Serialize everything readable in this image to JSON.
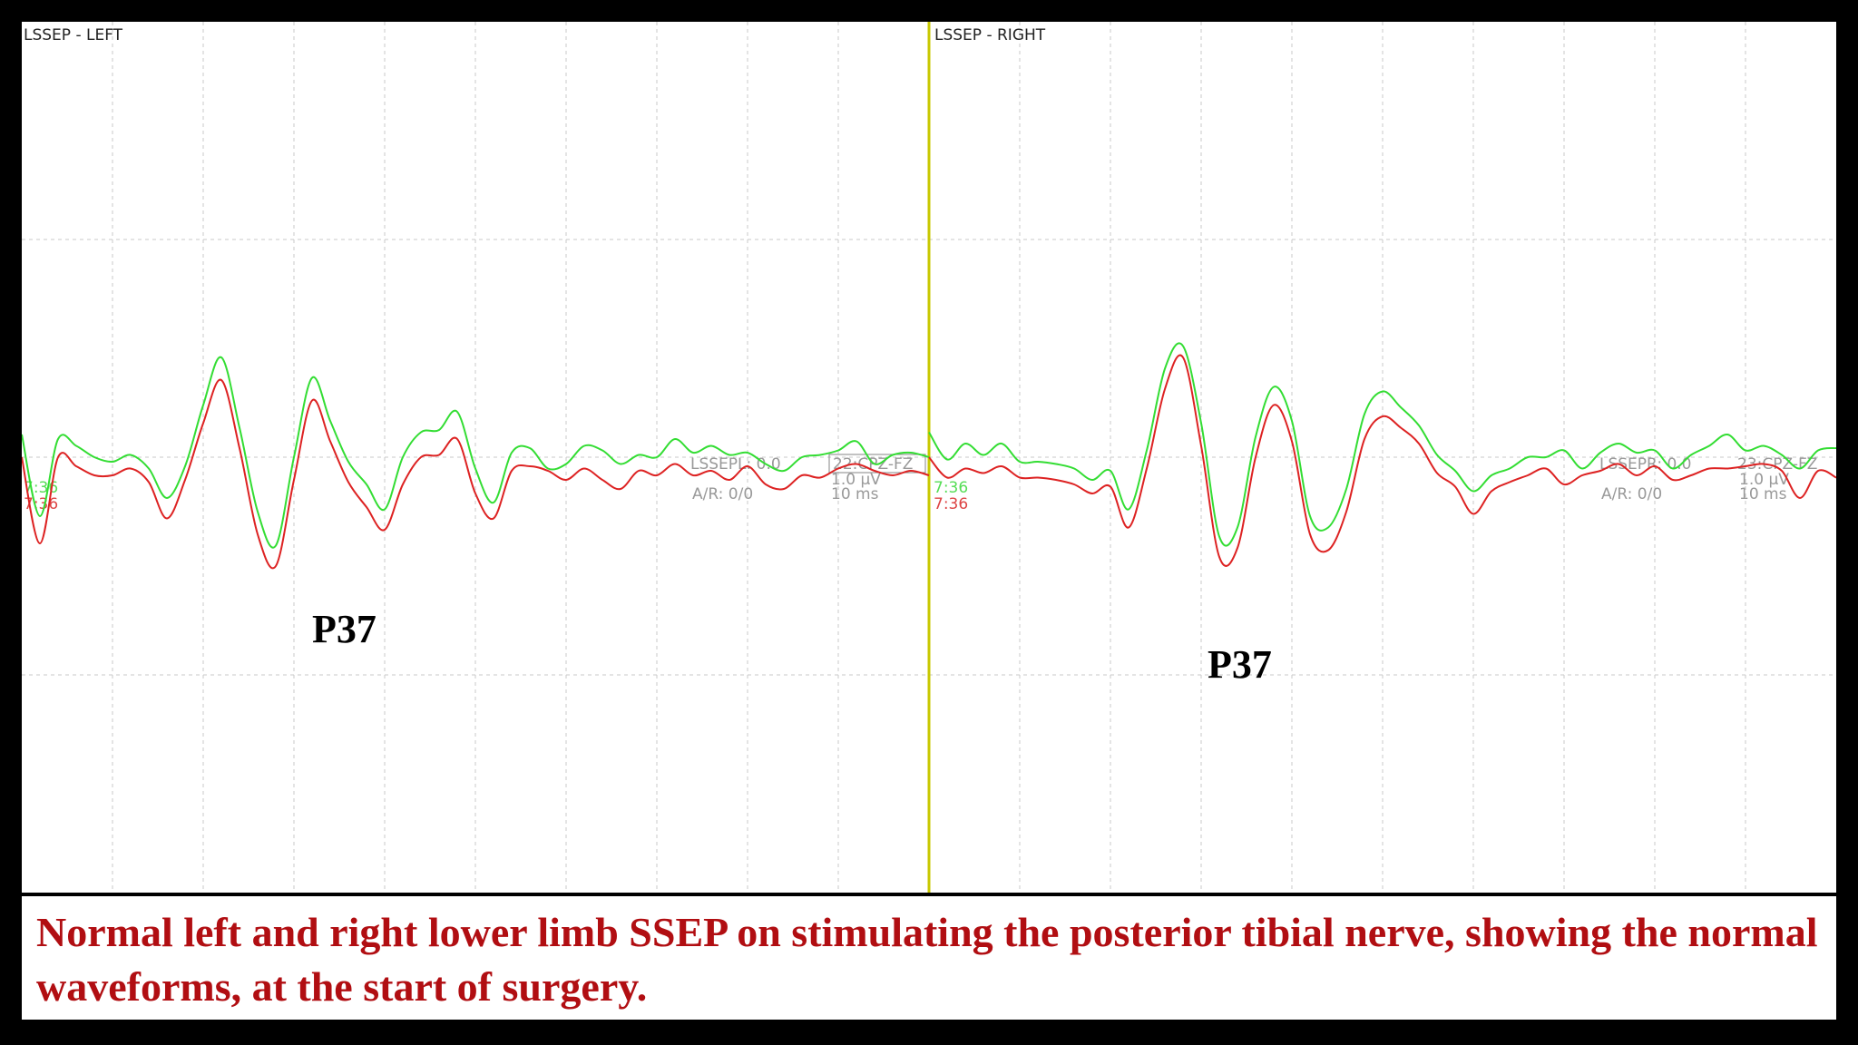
{
  "caption": "Normal left and right lower limb SSEP on stimulating the posterior tibial nerve, showing the normal waveforms, at the start of surgery.",
  "colors": {
    "trace_green": "#33dd33",
    "trace_red": "#dd2222",
    "divider": "#c8c800",
    "grid": "#c8c8c8",
    "caption": "#b10e12"
  },
  "chart_data": [
    {
      "type": "line",
      "title": "LSSEP - LEFT",
      "channel_labels": {
        "stim": "LSSEPL: 0.0",
        "ar": "A/R: 0/0",
        "montage": "22:CPZ-FZ",
        "sensitivity": "1.0 µV",
        "timebase": "10 ms"
      },
      "time_labels": [
        "7:36",
        "7:36"
      ],
      "peak_label": "P37",
      "x_ms": [
        0,
        2,
        4,
        6,
        8,
        10,
        12,
        14,
        16,
        18,
        20,
        22,
        24,
        26,
        28,
        30,
        32,
        34,
        36,
        38,
        40,
        42,
        44,
        46,
        48,
        50,
        52,
        54,
        56,
        58,
        60,
        62,
        64,
        66,
        68,
        70,
        72,
        74,
        76,
        78,
        80,
        82,
        84,
        86,
        88,
        90,
        92,
        94,
        96,
        98,
        100
      ],
      "series": [
        {
          "values": [
            1.0,
            -2.6,
            0.8,
            0.5,
            0.0,
            -0.2,
            0.1,
            -0.5,
            -1.8,
            -0.4,
            2.3,
            4.4,
            1.3,
            -2.4,
            -3.9,
            0.0,
            3.5,
            1.6,
            -0.2,
            -1.2,
            -2.3,
            0.0,
            1.1,
            1.2,
            2.0,
            -0.5,
            -2.0,
            0.2,
            0.4,
            -0.5,
            -0.3,
            0.5,
            0.3,
            -0.3,
            0.1,
            0.0,
            0.8,
            0.2,
            0.5,
            0.1,
            0.2,
            -0.3,
            -0.6,
            0.0,
            0.1,
            0.3,
            0.7,
            -0.3,
            0.1,
            0.2,
            0.0
          ]
        },
        {
          "values": [
            0.0,
            -3.8,
            0.0,
            -0.4,
            -0.8,
            -0.8,
            -0.5,
            -1.1,
            -2.7,
            -1.0,
            1.5,
            3.4,
            0.4,
            -3.4,
            -4.8,
            -1.0,
            2.5,
            0.7,
            -1.1,
            -2.2,
            -3.2,
            -1.2,
            0.0,
            0.1,
            0.8,
            -1.6,
            -2.7,
            -0.6,
            -0.4,
            -0.6,
            -1.0,
            -0.5,
            -1.0,
            -1.4,
            -0.6,
            -0.8,
            -0.3,
            -0.8,
            -0.6,
            -1.0,
            -0.4,
            -1.2,
            -1.4,
            -0.8,
            -0.9,
            -0.5,
            -0.3,
            -0.6,
            -0.8,
            -0.6,
            -0.8
          ]
        }
      ]
    },
    {
      "type": "line",
      "title": "LSSEP - RIGHT",
      "channel_labels": {
        "stim": "LSSEPR: 0.0",
        "ar": "A/R: 0/0",
        "montage": "23:CPZ-FZ",
        "sensitivity": "1.0 µV",
        "timebase": "10 ms"
      },
      "time_labels": [
        "7:36",
        "7:36"
      ],
      "peak_label": "P37",
      "x_ms": [
        0,
        2,
        4,
        6,
        8,
        10,
        12,
        14,
        16,
        18,
        20,
        22,
        24,
        26,
        28,
        30,
        32,
        34,
        36,
        38,
        40,
        42,
        44,
        46,
        48,
        50,
        52,
        54,
        56,
        58,
        60,
        62,
        64,
        66,
        68,
        70,
        72,
        74,
        76,
        78,
        80,
        82,
        84,
        86,
        88,
        90,
        92,
        94,
        96,
        98,
        100
      ],
      "series": [
        {
          "values": [
            1.1,
            -0.1,
            0.6,
            0.1,
            0.6,
            -0.2,
            -0.2,
            -0.3,
            -0.5,
            -1.0,
            -0.6,
            -2.3,
            0.3,
            3.9,
            4.9,
            1.5,
            -3.5,
            -3.1,
            0.9,
            3.1,
            1.6,
            -2.6,
            -3.1,
            -1.4,
            1.9,
            2.9,
            2.2,
            1.4,
            0.1,
            -0.6,
            -1.5,
            -0.8,
            -0.5,
            0.0,
            0.0,
            0.3,
            -0.5,
            0.2,
            0.6,
            0.2,
            0.3,
            -0.5,
            0.1,
            0.5,
            1.0,
            0.3,
            0.5,
            0.1,
            -0.5,
            0.3,
            0.4
          ]
        },
        {
          "values": [
            0.0,
            -0.9,
            -0.5,
            -0.7,
            -0.4,
            -0.9,
            -0.9,
            -1.0,
            -1.2,
            -1.6,
            -1.3,
            -3.1,
            -0.5,
            3.0,
            4.4,
            0.5,
            -4.4,
            -4.0,
            0.0,
            2.3,
            0.7,
            -3.4,
            -4.1,
            -2.4,
            0.8,
            1.8,
            1.3,
            0.6,
            -0.7,
            -1.3,
            -2.5,
            -1.5,
            -1.1,
            -0.8,
            -0.5,
            -1.2,
            -0.8,
            -0.6,
            -0.3,
            -0.8,
            -0.4,
            -1.0,
            -0.8,
            -0.5,
            -0.5,
            -0.4,
            -0.3,
            -0.6,
            -1.8,
            -0.6,
            -0.9
          ]
        }
      ]
    }
  ]
}
